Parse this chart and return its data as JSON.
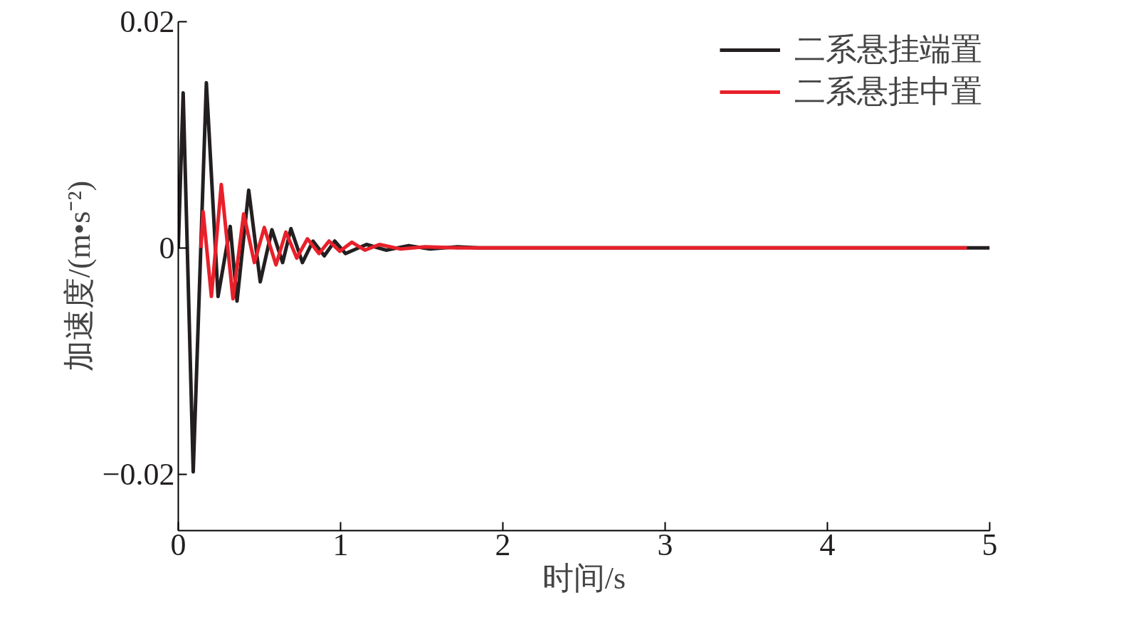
{
  "chart_data": {
    "type": "line",
    "xlabel": "时间/s",
    "ylabel": "加速度/(m•s⁻²)",
    "xlim": [
      0,
      5
    ],
    "ylim": [
      -0.025,
      0.02
    ],
    "xticks": [
      0,
      1,
      2,
      3,
      4,
      5
    ],
    "yticks": [
      {
        "value": -0.02,
        "label": "−0.02"
      },
      0,
      0.02
    ],
    "grid": false,
    "legend": "top right",
    "marker": "none",
    "line_style": "solid",
    "series": [
      {
        "name": "二系悬挂端置",
        "color": "#231f20",
        "x": [
          0,
          0.03,
          0.092,
          0.173,
          0.245,
          0.32,
          0.362,
          0.434,
          0.505,
          0.577,
          0.643,
          0.694,
          0.765,
          0.83,
          0.9,
          0.964,
          1.03,
          1.16,
          1.28,
          1.42,
          1.55,
          1.72,
          1.85,
          5
        ],
        "values": [
          0,
          0.0137,
          -0.0198,
          0.0146,
          -0.0043,
          0.0019,
          -0.0047,
          0.0051,
          -0.003,
          0.0016,
          -0.0013,
          0.0017,
          -0.0013,
          0.0006,
          -0.0007,
          0.0006,
          -0.0005,
          0.0003,
          -0.0002,
          0.0002,
          -0.0001,
          0.0001,
          0,
          0
        ]
      },
      {
        "name": "二系悬挂中置",
        "color": "#e8202a",
        "x": [
          0.14,
          0.153,
          0.204,
          0.265,
          0.337,
          0.403,
          0.469,
          0.53,
          0.602,
          0.663,
          0.73,
          0.796,
          0.867,
          0.929,
          0.995,
          1.07,
          1.15,
          1.24,
          1.37,
          1.52,
          1.72,
          4.86
        ],
        "values": [
          0,
          0.0032,
          -0.0043,
          0.0056,
          -0.0045,
          0.003,
          -0.0013,
          0.0018,
          -0.0015,
          0.0014,
          -0.0009,
          0.0008,
          -0.0005,
          0.0006,
          -0.0003,
          0.0005,
          -0.0002,
          0.0003,
          -0.0001,
          0.0001,
          0,
          0
        ]
      }
    ]
  }
}
